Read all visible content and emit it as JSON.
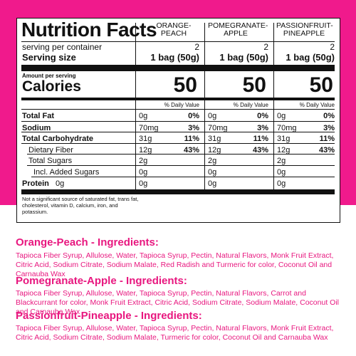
{
  "facts": {
    "title": "Nutrition Facts",
    "serving_per_container_label": "serving per container",
    "serving_size_label": "Serving size",
    "amount_per_serving_label": "Amount per serving",
    "calories_label": "Calories",
    "dv_label": "% Daily Value",
    "footnote": "Not a significant source of saturated fat, trans fat, cholesterol, vitamin D, calcium, iron, and potassium.",
    "columns": [
      {
        "name": "ORANGE-PEACH",
        "servings": "2",
        "serving_size": "1 bag (50g)",
        "calories": "50",
        "fat": "0g",
        "fat_dv": "0%",
        "sodium": "70mg",
        "sodium_dv": "3%",
        "carb": "31g",
        "carb_dv": "11%",
        "fiber": "12g",
        "fiber_dv": "43%",
        "sugars": "2g",
        "added": "0g",
        "protein": "0g"
      },
      {
        "name": "POMEGRANATE-APPLE",
        "servings": "2",
        "serving_size": "1 bag (50g)",
        "calories": "50",
        "fat": "0g",
        "fat_dv": "0%",
        "sodium": "70mg",
        "sodium_dv": "3%",
        "carb": "31g",
        "carb_dv": "11%",
        "fiber": "12g",
        "fiber_dv": "43%",
        "sugars": "2g",
        "added": "0g",
        "protein": "0g"
      },
      {
        "name": "PASSIONFRUIT-PINEAPPLE",
        "servings": "2",
        "serving_size": "1 bag (50g)",
        "calories": "50",
        "fat": "0g",
        "fat_dv": "0%",
        "sodium": "70mg",
        "sodium_dv": "3%",
        "carb": "31g",
        "carb_dv": "11%",
        "fiber": "12g",
        "fiber_dv": "43%",
        "sugars": "2g",
        "added": "0g",
        "protein": "0g"
      }
    ],
    "rows": [
      {
        "label": "Total Fat"
      },
      {
        "label": "Sodium"
      },
      {
        "label": "Total Carbohydrate"
      },
      {
        "label": "Dietary Fiber"
      },
      {
        "label": "Total Sugars"
      },
      {
        "label": "Incl. Added Sugars"
      },
      {
        "label": "Protein",
        "value": "0g"
      }
    ]
  },
  "ingredients": [
    {
      "title": "Orange-Peach - Ingredients:",
      "text": "Tapioca Fiber Syrup, Allulose, Water, Tapioca Syrup, Pectin, Natural Flavors, Monk Fruit Extract, Citric Acid, Sodium Citrate, Sodium Malate, Red Radish and Turmeric for color, Coconut Oil and Carnauba Wax"
    },
    {
      "title": "Pomegranate-Apple - Ingredients:",
      "text": "Tapioca Fiber Syrup, Allulose, Water, Tapioca Syrup, Pectin, Natural Flavors, Carrot and Blackcurrant for color, Monk Fruit Extract, Citric Acid, Sodium Citrate, Sodium Malate, Coconut Oil and Carnauba Wax"
    },
    {
      "title": "Passionfruit-Pineapple - Ingredients:",
      "text": "Tapioca Fiber Syrup, Allulose, Water, Tapioca Syrup, Pectin, Natural Flavors, Monk Fruit Extract, Citric Acid, Sodium Citrate, Sodium Malate, Turmeric for color, Coconut Oil and Carnauba Wax"
    }
  ],
  "colors": {
    "magenta": "#f01a8c",
    "ingredient_text": "#e8177f",
    "ink": "#111111"
  }
}
